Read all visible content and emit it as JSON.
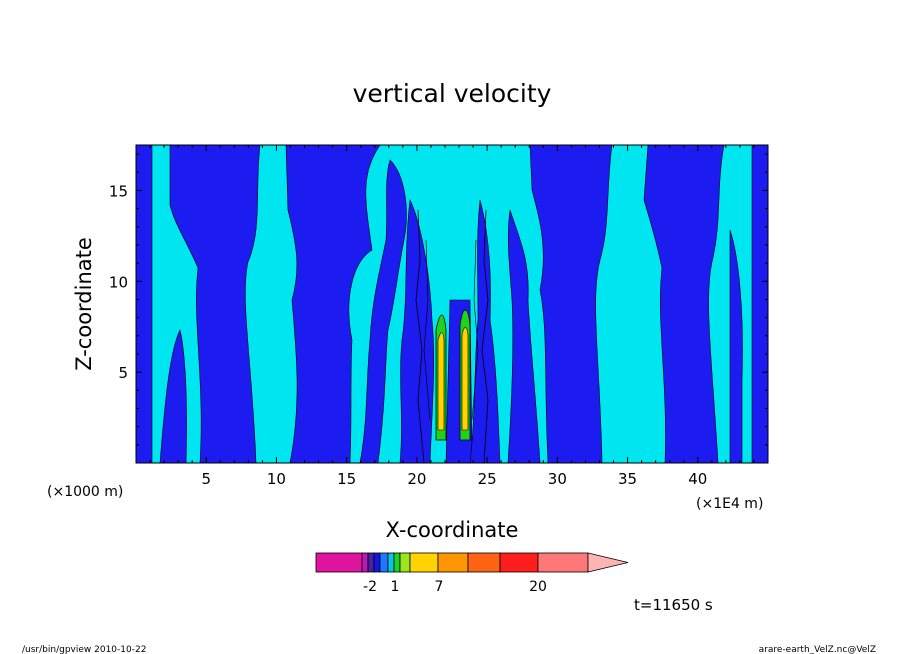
{
  "chart_data": {
    "type": "heatmap",
    "title": "vertical velocity",
    "xlabel": "X-coordinate",
    "ylabel": "Z-coordinate",
    "x_unit_left": "(×1000 m)",
    "x_unit_right": "(×1E4 m)",
    "xlim": [
      0,
      45
    ],
    "ylim": [
      0,
      17.5
    ],
    "xticks": [
      "5",
      "10",
      "15",
      "20",
      "25",
      "30",
      "35",
      "40"
    ],
    "yticks": [
      "5",
      "10",
      "15"
    ],
    "colorbar": {
      "labels": [
        "-2",
        "1",
        "7",
        "20"
      ],
      "colors": [
        "#e0149e",
        "#b818ba",
        "#4a1fa0",
        "#1414e6",
        "#1e78ff",
        "#00c8e6",
        "#1ed21e",
        "#9ce61e",
        "#ffd200",
        "#ff9600",
        "#ff6414",
        "#ff1e1e",
        "#ff7878",
        "#ffb4b4"
      ],
      "extend": "max"
    },
    "time_label": "t=11650 s",
    "dominant_colors": {
      "background": "#00e6f0",
      "downdraft": "#1c1cf0",
      "updraft_core": "#ffd200",
      "updraft_edge": "#1ed21e"
    }
  },
  "footer": {
    "left": "/usr/bin/gpview  2010-10-22",
    "right": "arare-earth_VelZ.nc@VelZ"
  }
}
